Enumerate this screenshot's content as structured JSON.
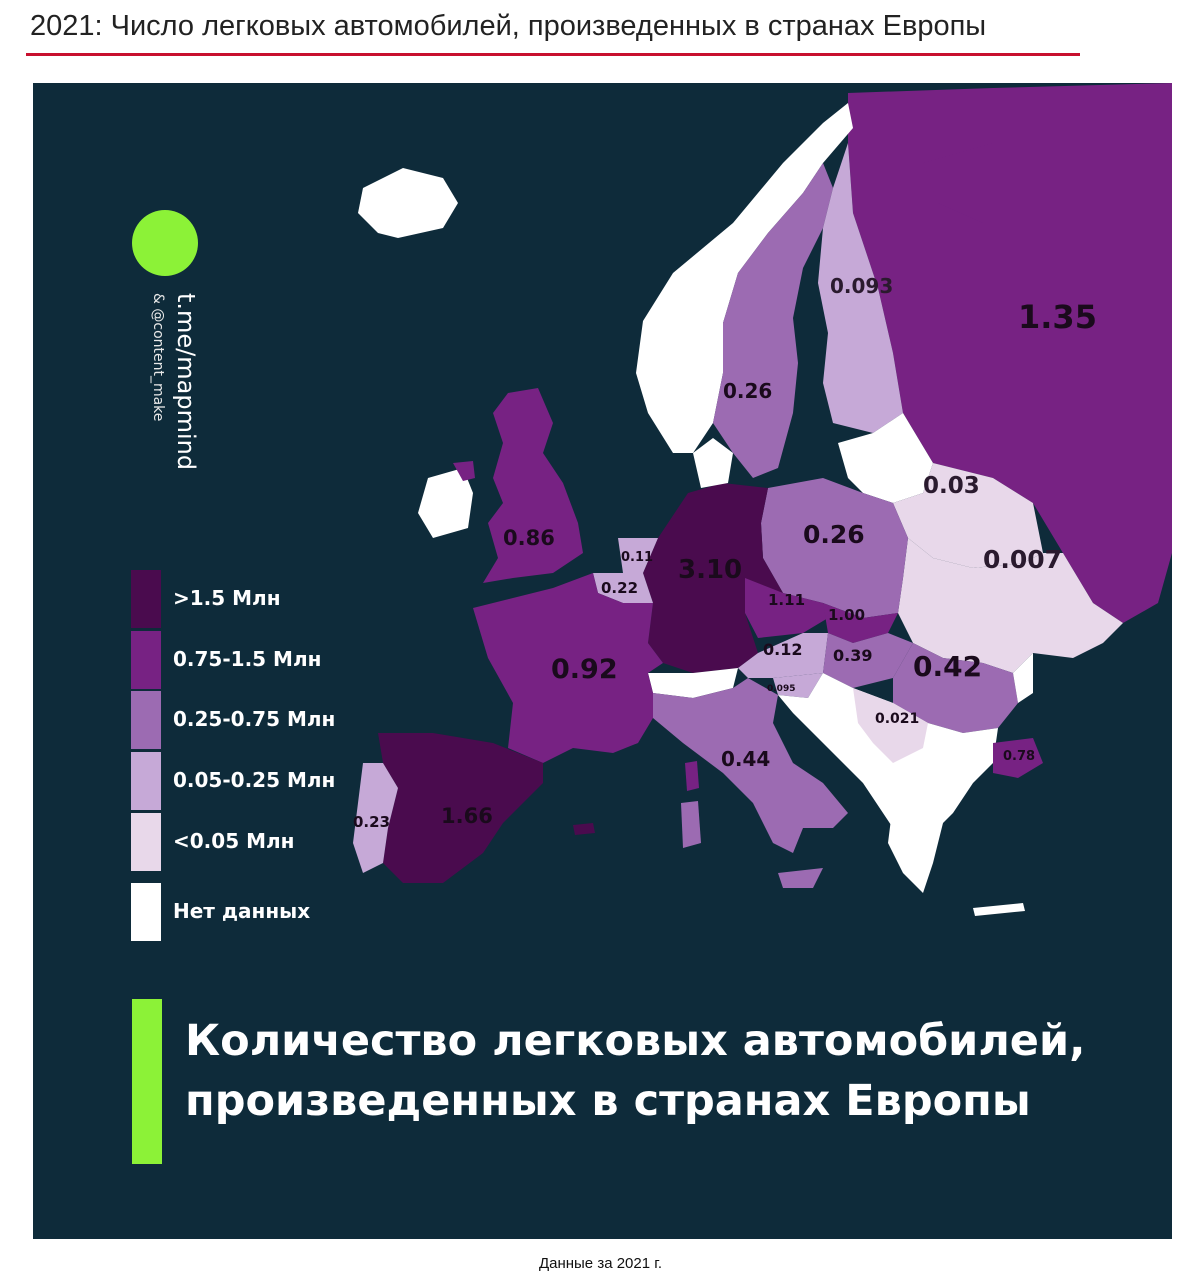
{
  "page_title": "2021: Число легковых автомобилей, произведенных в странах Европы",
  "footer_note": "Данные за 2021 г.",
  "brand": {
    "channel": "t.me/mapmind",
    "handle": "& @content_make"
  },
  "map_heading": [
    "Количество легковых автомобилей,",
    "произведенных в странах Европы"
  ],
  "colors": {
    "background": "#0e2b3a",
    "accent_green": "#8cf237",
    "rule_red": "#c8102e",
    "gt_1_5": "#4a0b4e",
    "c_0_75_1_5": "#772283",
    "c_0_25_0_75": "#9c6bb2",
    "c_0_05_0_25": "#c6a9d7",
    "lt_0_05": "#e8d8ea",
    "no_data": "#ffffff"
  },
  "legend": [
    {
      "label": ">1.5 Млн",
      "color": "#4a0b4e"
    },
    {
      "label": "0.75-1.5 Млн",
      "color": "#772283"
    },
    {
      "label": "0.25-0.75 Млн",
      "color": "#9c6bb2"
    },
    {
      "label": "0.05-0.25 Млн",
      "color": "#c6a9d7"
    },
    {
      "label": "<0.05 Млн",
      "color": "#e8d8ea"
    },
    {
      "label": "Нет данных",
      "color": "#ffffff"
    }
  ],
  "map_values": {
    "russia": "1.35",
    "finland": "0.093",
    "sweden": "0.26",
    "belarus": "0.03",
    "united_kingdom": "0.86",
    "poland": "0.26",
    "ukraine": "0.007",
    "netherlands": "0.11",
    "belgium": "0.22",
    "germany": "3.10",
    "czechia": "1.11",
    "slovakia": "1.00",
    "france": "0.92",
    "austria": "0.12",
    "hungary": "0.39",
    "romania": "0.42",
    "slovenia": "0.095",
    "serbia": "0.021",
    "italy": "0.44",
    "turkey": "0.78",
    "portugal": "0.23",
    "spain": "1.66"
  }
}
